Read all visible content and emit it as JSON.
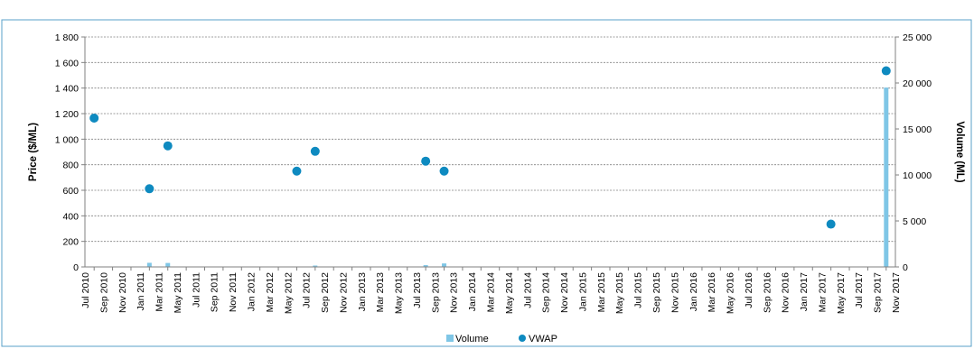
{
  "chart_data": {
    "type": "bar+scatter",
    "x_categories": [
      "Jul 2010",
      "Sep 2010",
      "Nov 2010",
      "Jan 2011",
      "Mar 2011",
      "May 2011",
      "Jul 2011",
      "Sep 2011",
      "Nov 2011",
      "Jan 2012",
      "Mar 2012",
      "May 2012",
      "Jul 2012",
      "Sep 2012",
      "Nov 2012",
      "Jan 2013",
      "Mar 2013",
      "May 2013",
      "Jul 2013",
      "Sep 2013",
      "Nov 2013",
      "Jan 2014",
      "Mar 2014",
      "May 2014",
      "Jul 2014",
      "Sep 2014",
      "Nov 2014",
      "Jan 2015",
      "Mar 2015",
      "May 2015",
      "Jul 2015",
      "Sep 2015",
      "Nov 2015",
      "Jan 2016",
      "Mar 2016",
      "May 2016",
      "Jul 2016",
      "Sep 2016",
      "Nov 2016",
      "Jan 2017",
      "Mar 2017",
      "May 2017",
      "Jul 2017",
      "Sep 2017",
      "Nov 2017"
    ],
    "left_axis": {
      "label": "Price ($/ML)",
      "range": [
        0,
        1800
      ],
      "ticks": [
        0,
        200,
        400,
        600,
        800,
        1000,
        1200,
        1400,
        1600,
        1800
      ],
      "tick_labels": [
        "0",
        "200",
        "400",
        "600",
        "800",
        "1 000",
        "1 200",
        "1 400",
        "1 600",
        "1 800"
      ]
    },
    "right_axis": {
      "label": "Volume (ML)",
      "range": [
        0,
        25000
      ],
      "ticks": [
        0,
        5000,
        10000,
        15000,
        20000,
        25000
      ],
      "tick_labels": [
        "0",
        "5 000",
        "10 000",
        "15 000",
        "20 000",
        "25 000"
      ]
    },
    "grid": true,
    "legend_position": "bottom",
    "series": [
      {
        "name": "Volume",
        "kind": "bar",
        "axis": "right",
        "color": "#7fc6e6",
        "points": [
          {
            "x": "Feb 2011",
            "y": 450
          },
          {
            "x": "Apr 2011",
            "y": 430
          },
          {
            "x": "Aug 2012",
            "y": 150
          },
          {
            "x": "Aug 2013",
            "y": 200
          },
          {
            "x": "Oct 2013",
            "y": 380
          },
          {
            "x": "Oct 2017",
            "y": 19500
          }
        ]
      },
      {
        "name": "VWAP",
        "kind": "scatter",
        "axis": "left",
        "color": "#0e8ac0",
        "points": [
          {
            "x": "Aug 2010",
            "y": 1165
          },
          {
            "x": "Feb 2011",
            "y": 612
          },
          {
            "x": "Apr 2011",
            "y": 948
          },
          {
            "x": "Jun 2012",
            "y": 750
          },
          {
            "x": "Aug 2012",
            "y": 905
          },
          {
            "x": "Aug 2013",
            "y": 828
          },
          {
            "x": "Oct 2013",
            "y": 750
          },
          {
            "x": "Apr 2017",
            "y": 335
          },
          {
            "x": "Oct 2017",
            "y": 1535
          }
        ]
      }
    ]
  }
}
